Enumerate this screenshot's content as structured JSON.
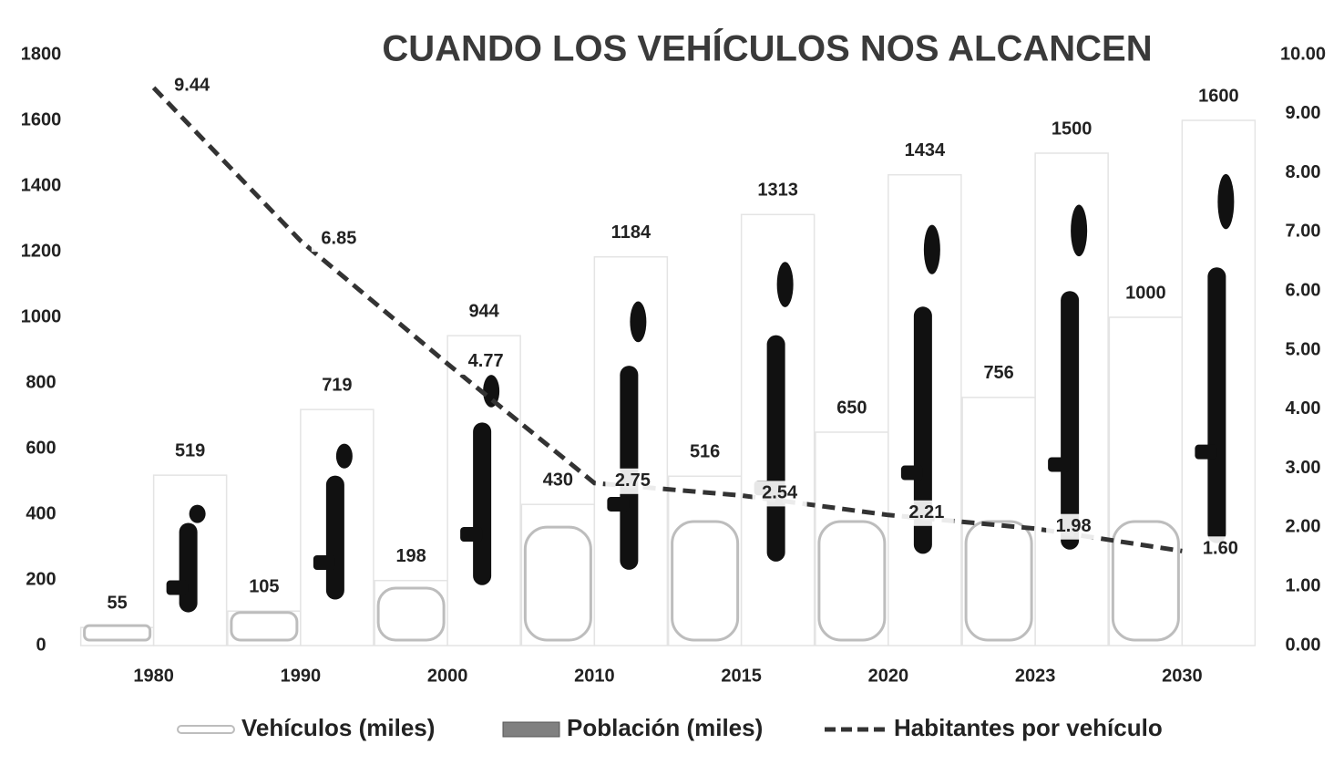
{
  "chart_data": {
    "type": "bar",
    "title": "CUANDO LOS VEHÍCULOS NOS ALCANCEN",
    "categories": [
      "1980",
      "1990",
      "2000",
      "2010",
      "2015",
      "2020",
      "2023",
      "2030"
    ],
    "series": [
      {
        "name": "Vehículos (miles)",
        "type": "bar",
        "color": "#bdbdbd",
        "values": [
          55,
          105,
          198,
          430,
          516,
          650,
          756,
          1000
        ]
      },
      {
        "name": "Población (miles)",
        "type": "bar",
        "color": "#808080",
        "values": [
          519,
          719,
          944,
          1184,
          1313,
          1434,
          1500,
          1600
        ]
      },
      {
        "name": "Habitantes por vehículo",
        "type": "line",
        "axis": "y2",
        "color": "#333333",
        "values": [
          9.44,
          6.85,
          4.77,
          2.75,
          2.54,
          2.21,
          1.98,
          1.6
        ],
        "value_labels": [
          "9.44",
          "6.85",
          "4.77",
          "2.75",
          "2.54",
          "2.21",
          "1.98",
          "1.60"
        ]
      }
    ],
    "ylim": [
      0,
      1800
    ],
    "yticks": [
      0,
      200,
      400,
      600,
      800,
      1000,
      1200,
      1400,
      1600,
      1800
    ],
    "y2lim": [
      0,
      10
    ],
    "y2ticks": [
      {
        "value": 0,
        "label": "0.00"
      },
      {
        "value": 1,
        "label": "1.00"
      },
      {
        "value": 2,
        "label": "2.00"
      },
      {
        "value": 3,
        "label": "3.00"
      },
      {
        "value": 4,
        "label": "4.00"
      },
      {
        "value": 5,
        "label": "5.00"
      },
      {
        "value": 6,
        "label": "6.00"
      },
      {
        "value": 7,
        "label": "7.00"
      },
      {
        "value": 8,
        "label": "8.00"
      },
      {
        "value": 9,
        "label": "9.00"
      },
      {
        "value": 10,
        "label": "10.00"
      }
    ],
    "grid": false
  }
}
